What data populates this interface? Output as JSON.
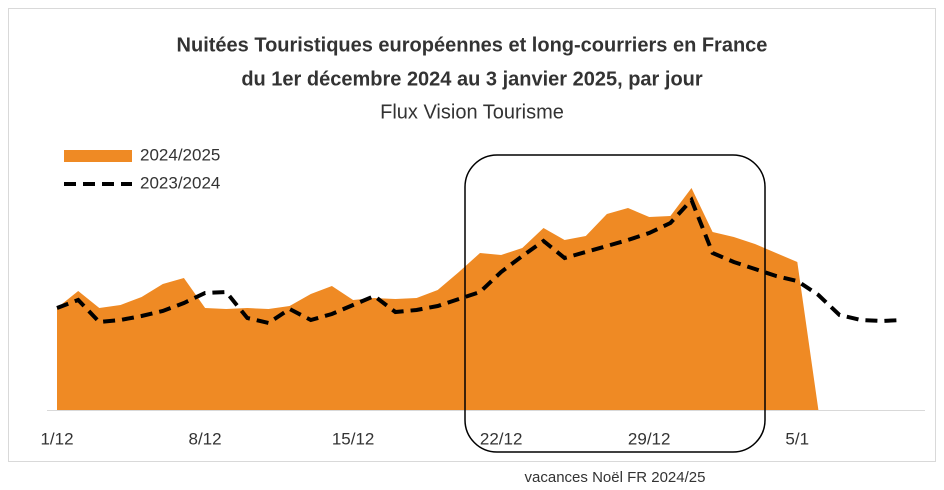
{
  "chart_data": {
    "type": "area",
    "title": "Nuitées Touristiques européennes et long-courriers en France",
    "title2": "du 1er décembre 2024 au 3 janvier 2025, par jour",
    "subtitle": "Flux Vision Tourisme",
    "annotation": "vacances Noël FR 2024/25",
    "categories": [
      "1/12",
      null,
      null,
      null,
      null,
      null,
      null,
      "8/12",
      null,
      null,
      null,
      null,
      null,
      null,
      "15/12",
      null,
      null,
      null,
      null,
      null,
      null,
      "22/12",
      null,
      null,
      null,
      null,
      null,
      null,
      "29/12",
      null,
      null,
      null,
      null,
      null,
      null,
      "5/1",
      null,
      null,
      null,
      null,
      null
    ],
    "ylim": [
      0,
      120
    ],
    "legend": "top-left",
    "series": [
      {
        "name": "2024/2025",
        "color": "#ef8a24",
        "style": "area",
        "values": [
          51,
          59.5,
          51,
          52.5,
          56.5,
          63,
          66,
          51,
          50.5,
          51,
          50.5,
          52,
          58,
          62,
          55,
          56,
          55.5,
          56,
          60,
          69,
          78.5,
          77.5,
          81,
          91,
          85,
          87,
          98,
          101,
          96.5,
          97,
          111,
          89,
          86.5,
          83,
          78.5,
          74,
          0,
          null,
          null,
          null,
          null
        ]
      },
      {
        "name": "2023/2024",
        "color": "#000000",
        "style": "dashed",
        "values": [
          51,
          55,
          44,
          45,
          47,
          49.5,
          53.5,
          58.5,
          59,
          46,
          43.5,
          50.5,
          45,
          48,
          52.5,
          57,
          49,
          50,
          52,
          55.5,
          59,
          69,
          77,
          84.5,
          76,
          79,
          82,
          85,
          88.5,
          93.5,
          105,
          78.5,
          74,
          70.5,
          67,
          64.5,
          57.5,
          47.5,
          45,
          44.5,
          45
        ]
      }
    ]
  }
}
